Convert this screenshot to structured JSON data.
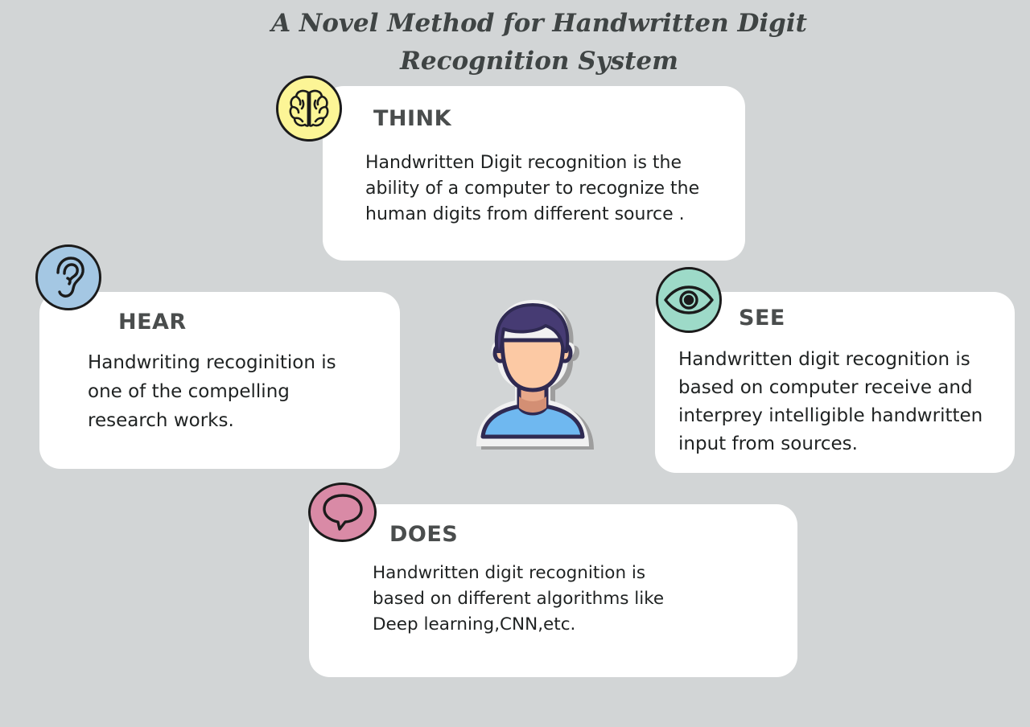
{
  "title": "A Novel Method for Handwritten Digit Recognition System",
  "cards": {
    "think": {
      "heading": "THINK",
      "body": "Handwritten Digit recognition is the\nability of a computer to recognize the\nhuman digits from different source .",
      "icon": "brain-icon",
      "color": "#fcf596"
    },
    "hear": {
      "heading": "HEAR",
      "body": "Handwriting recoginition is\none of the compelling\nresearch works.",
      "icon": "ear-icon",
      "color": "#a4c7e3"
    },
    "see": {
      "heading": "SEE",
      "body": "Handwritten digit recognition is\nbased on computer receive and\ninterprey intelligible handwritten\ninput from sources.",
      "icon": "eye-icon",
      "color": "#9ddac8"
    },
    "does": {
      "heading": "DOES",
      "body": "Handwritten digit recognition is\nbased on different algorithms like\nDeep learning,CNN,etc.",
      "icon": "speech-bubble-icon",
      "color": "#d98aa6"
    }
  },
  "center": {
    "icon": "person-icon"
  },
  "colors": {
    "background": "#d2d5d6",
    "card": "#ffffff",
    "heading": "#4a4d4d",
    "person_hair": "#463b73",
    "person_skin": "#fcc9a4",
    "person_shirt": "#6fb8f0"
  }
}
